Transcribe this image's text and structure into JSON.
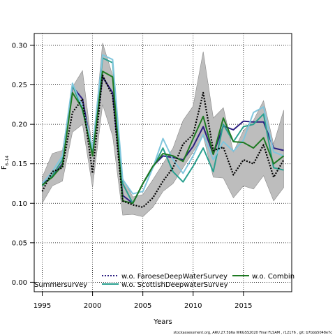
{
  "chart_data": {
    "type": "line",
    "ylabel": "F",
    "ylabel_sub": "6–14",
    "xlabel": "Years",
    "xlim": [
      1994.2,
      2019.8
    ],
    "ylim": [
      -0.012,
      0.315
    ],
    "xticks": [
      1995,
      2000,
      2005,
      2010,
      2015
    ],
    "yticks": [
      0.0,
      0.05,
      0.1,
      0.15,
      0.2,
      0.25,
      0.3
    ],
    "ytick_labels": [
      "0.00",
      "0.05",
      "0.10",
      "0.15",
      "0.20",
      "0.25",
      "0.30"
    ],
    "grid": true,
    "x": [
      1995,
      1996,
      1997,
      1998,
      1999,
      2000,
      2001,
      2002,
      2003,
      2004,
      2005,
      2006,
      2007,
      2008,
      2009,
      2010,
      2011,
      2012,
      2013,
      2014,
      2015,
      2016,
      2017,
      2018,
      2019
    ],
    "band": {
      "lower": [
        0.1,
        0.122,
        0.128,
        0.19,
        0.2,
        0.12,
        0.225,
        0.185,
        0.085,
        0.086,
        0.083,
        0.095,
        0.115,
        0.125,
        0.145,
        0.165,
        0.185,
        0.133,
        0.132,
        0.107,
        0.122,
        0.118,
        0.135,
        0.103,
        0.12
      ],
      "upper": [
        0.133,
        0.163,
        0.167,
        0.247,
        0.268,
        0.166,
        0.303,
        0.262,
        0.132,
        0.108,
        0.111,
        0.13,
        0.15,
        0.17,
        0.205,
        0.223,
        0.292,
        0.208,
        0.221,
        0.165,
        0.192,
        0.205,
        0.23,
        0.175,
        0.218
      ],
      "color": "#bdbdbd"
    },
    "series": [
      {
        "name": "Summersurvey",
        "color": "#000000",
        "style": "dotted",
        "values": [
          0.115,
          0.14,
          0.145,
          0.215,
          0.232,
          0.138,
          0.262,
          0.236,
          0.103,
          0.098,
          0.095,
          0.107,
          0.128,
          0.145,
          0.175,
          0.187,
          0.24,
          0.167,
          0.171,
          0.136,
          0.155,
          0.15,
          0.174,
          0.133,
          0.155
        ]
      },
      {
        "name": "w.o. FaroeseDeepWaterSurvey",
        "color": "#2b1d80",
        "style": "solid",
        "values": [
          0.125,
          0.133,
          0.15,
          0.248,
          0.232,
          0.163,
          0.26,
          0.24,
          0.11,
          0.1,
          0.125,
          0.147,
          0.16,
          0.158,
          0.155,
          0.172,
          0.197,
          0.162,
          0.198,
          0.193,
          0.204,
          0.203,
          0.203,
          0.17,
          0.167
        ]
      },
      {
        "name": "w.o. ScottishDeepwaterSurvey",
        "color": "#2aa08f",
        "style": "solid",
        "values": [
          0.122,
          0.135,
          0.155,
          0.25,
          0.218,
          0.165,
          0.284,
          0.278,
          0.125,
          0.1,
          0.125,
          0.145,
          0.17,
          0.14,
          0.127,
          0.147,
          0.17,
          0.14,
          0.2,
          0.178,
          0.197,
          0.2,
          0.213,
          0.145,
          0.142
        ]
      },
      {
        "name": "light-blue-line",
        "color": "#80c6dd",
        "style": "solid",
        "values": [
          0.125,
          0.14,
          0.16,
          0.252,
          0.222,
          0.17,
          0.288,
          0.282,
          0.13,
          0.112,
          0.115,
          0.145,
          0.182,
          0.155,
          0.138,
          0.16,
          0.187,
          0.155,
          0.178,
          0.166,
          0.18,
          0.215,
          0.222,
          0.165,
          0.16
        ]
      },
      {
        "name": "w.o. Combin",
        "color": "#1e7a22",
        "style": "solid",
        "values": [
          0.123,
          0.133,
          0.148,
          0.24,
          0.22,
          0.16,
          0.267,
          0.26,
          0.103,
          0.1,
          0.125,
          0.147,
          0.163,
          0.16,
          0.153,
          0.182,
          0.21,
          0.162,
          0.208,
          0.178,
          0.177,
          0.17,
          0.183,
          0.15,
          0.16
        ]
      }
    ],
    "legend": {
      "placement": "bottom",
      "entries": [
        {
          "label": "w.o. FaroeseDeepWaterSurvey",
          "color": "#2b1d80",
          "style": "dotted"
        },
        {
          "label": "w.o. Combin",
          "color": "#1e7a22",
          "style": "solid"
        },
        {
          "label": "w.o. ScottishDeepwaterSurvey",
          "color": "#2aa08f",
          "style": "solid"
        }
      ],
      "extra_label": "Summersurvey"
    },
    "footer": "stockassessment.org,  ARU.27.5b6a  WKGSS2020  Final  FLSAM  ,  r12176  ,  git:  b7bbb5048e7c"
  }
}
